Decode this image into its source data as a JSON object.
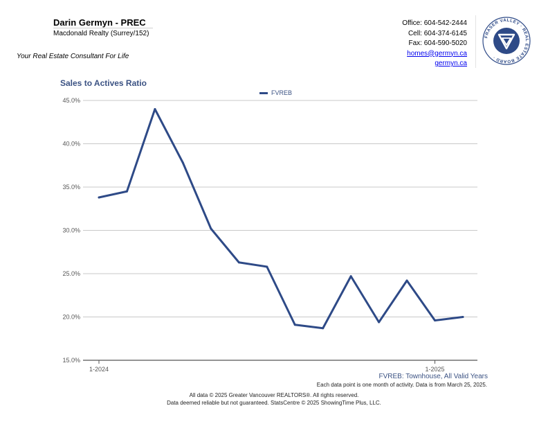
{
  "header": {
    "agent_name": "Darin Germyn - PREC",
    "brokerage": "Macdonald Realty (Surrey/152)",
    "tagline": "Your Real Estate Consultant For Life",
    "office": "Office: 604-542-2444",
    "cell": "Cell: 604-374-6145",
    "fax": "Fax: 604-590-5020",
    "email": "homes@germyn.ca",
    "website": "germyn.ca"
  },
  "logo": {
    "ring_text": "FRASER VALLEY · REAL ESTATE BOARD ·",
    "color": "#2e4a87"
  },
  "chart_data": {
    "type": "line",
    "title": "Sales to Actives Ratio",
    "legend": "top-center",
    "grid": true,
    "ylim": [
      15,
      45
    ],
    "yticks": [
      "45.0%",
      "40.0%",
      "35.0%",
      "30.0%",
      "25.0%",
      "20.0%",
      "15.0%"
    ],
    "xticks": [
      "1-2024",
      "1-2025"
    ],
    "x": [
      "2024-01",
      "2024-02",
      "2024-03",
      "2024-04",
      "2024-05",
      "2024-06",
      "2024-07",
      "2024-08",
      "2024-09",
      "2024-10",
      "2024-11",
      "2024-12",
      "2025-01",
      "2025-02"
    ],
    "series": [
      {
        "name": "FVREB",
        "color": "#2e4a87",
        "values": [
          33.8,
          34.5,
          44.0,
          37.8,
          30.2,
          26.3,
          25.8,
          19.1,
          18.7,
          24.7,
          19.4,
          24.2,
          19.6,
          20.0
        ]
      }
    ]
  },
  "footer": {
    "source": "FVREB: Townhouse, All Valid Years",
    "note": "Each data point is one month of activity. Data is from March 25, 2025.",
    "copyright1": "All data © 2025 Greater Vancouver REALTORS®. All rights reserved.",
    "copyright2": "Data deemed reliable but not guaranteed. StatsCentre © 2025 ShowingTime Plus, LLC."
  }
}
